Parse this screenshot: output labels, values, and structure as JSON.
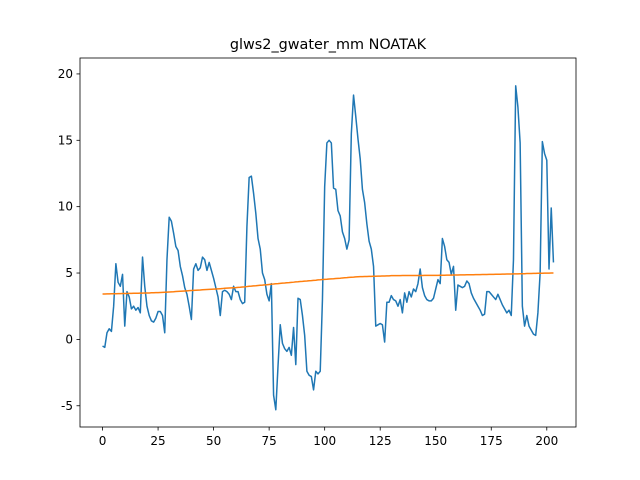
{
  "chart_data": {
    "type": "line",
    "title": "glws2_gwater_mm NOATAK",
    "x": [
      0,
      1,
      2,
      3,
      4,
      5,
      6,
      7,
      8,
      9,
      10,
      11,
      12,
      13,
      14,
      15,
      16,
      17,
      18,
      19,
      20,
      21,
      22,
      23,
      24,
      25,
      26,
      27,
      28,
      29,
      30,
      31,
      32,
      33,
      34,
      35,
      36,
      37,
      38,
      39,
      40,
      41,
      42,
      43,
      44,
      45,
      46,
      47,
      48,
      49,
      50,
      51,
      52,
      53,
      54,
      55,
      56,
      57,
      58,
      59,
      60,
      61,
      62,
      63,
      64,
      65,
      66,
      67,
      68,
      69,
      70,
      71,
      72,
      73,
      74,
      75,
      76,
      77,
      78,
      79,
      80,
      81,
      82,
      83,
      84,
      85,
      86,
      87,
      88,
      89,
      90,
      91,
      92,
      93,
      94,
      95,
      96,
      97,
      98,
      99,
      100,
      101,
      102,
      103,
      104,
      105,
      106,
      107,
      108,
      109,
      110,
      111,
      112,
      113,
      114,
      115,
      116,
      117,
      118,
      119,
      120,
      121,
      122,
      123,
      124,
      125,
      126,
      127,
      128,
      129,
      130,
      131,
      132,
      133,
      134,
      135,
      136,
      137,
      138,
      139,
      140,
      141,
      142,
      143,
      144,
      145,
      146,
      147,
      148,
      149,
      150,
      151,
      152,
      153,
      154,
      155,
      156,
      157,
      158,
      159,
      160,
      161,
      162,
      163,
      164,
      165,
      166,
      167,
      168,
      169,
      170,
      171,
      172,
      173,
      174,
      175,
      176,
      177,
      178,
      179,
      180,
      181,
      182,
      183,
      184,
      185,
      186,
      187,
      188,
      189,
      190,
      191,
      192,
      193,
      194,
      195,
      196,
      197,
      198,
      199,
      200,
      201,
      202,
      203
    ],
    "series": [
      {
        "color": "#1f77b4",
        "values": [
          -0.5,
          -0.6,
          0.5,
          0.8,
          0.6,
          2.5,
          5.7,
          4.3,
          4.0,
          4.9,
          1.0,
          3.6,
          3.2,
          2.3,
          2.5,
          2.2,
          2.4,
          2.0,
          6.2,
          4.0,
          2.5,
          1.8,
          1.4,
          1.3,
          1.6,
          2.1,
          2.1,
          1.8,
          0.5,
          6.0,
          9.2,
          8.9,
          8.0,
          7.0,
          6.7,
          5.5,
          4.8,
          3.9,
          3.4,
          2.5,
          1.5,
          5.3,
          5.7,
          5.2,
          5.4,
          6.2,
          6.0,
          5.2,
          5.8,
          5.2,
          4.6,
          3.9,
          3.2,
          1.8,
          3.6,
          3.7,
          3.6,
          3.4,
          3.0,
          4.0,
          3.6,
          3.6,
          3.0,
          2.7,
          2.8,
          8.5,
          12.2,
          12.3,
          11.0,
          9.5,
          7.6,
          6.8,
          5.0,
          4.5,
          3.4,
          2.9,
          4.2,
          -4.2,
          -5.3,
          -2.0,
          1.1,
          -0.3,
          -0.7,
          -0.9,
          -0.6,
          -1.2,
          0.9,
          -1.9,
          3.1,
          3.0,
          1.8,
          0.3,
          -2.4,
          -2.7,
          -2.8,
          -3.8,
          -2.4,
          -2.6,
          -2.4,
          3.0,
          11.5,
          14.8,
          15.0,
          14.8,
          11.4,
          11.3,
          9.7,
          9.3,
          8.1,
          7.6,
          6.8,
          7.5,
          15.5,
          18.4,
          16.8,
          15.1,
          13.6,
          11.3,
          10.3,
          8.7,
          7.4,
          6.8,
          5.5,
          1.0,
          1.1,
          1.2,
          1.1,
          -0.2,
          2.8,
          2.8,
          3.3,
          3.0,
          2.9,
          2.5,
          3.0,
          2.0,
          3.5,
          2.8,
          3.6,
          3.2,
          3.8,
          3.6,
          4.2,
          5.3,
          3.9,
          3.3,
          3.0,
          2.9,
          2.9,
          3.1,
          3.8,
          4.5,
          4.2,
          7.6,
          7.0,
          6.0,
          5.8,
          4.9,
          5.5,
          2.2,
          4.1,
          4.0,
          3.9,
          4.0,
          4.4,
          4.2,
          3.5,
          3.1,
          2.8,
          2.5,
          2.2,
          1.8,
          1.9,
          3.6,
          3.6,
          3.4,
          3.2,
          3.0,
          3.4,
          3.0,
          2.6,
          2.3,
          2.0,
          2.2,
          1.8,
          6.0,
          19.1,
          17.5,
          14.8,
          2.5,
          1.0,
          1.8,
          1.0,
          0.7,
          0.4,
          0.3,
          2.0,
          5.0,
          14.9,
          14.0,
          13.5,
          5.3,
          9.9,
          5.8
        ]
      },
      {
        "color": "#ff7f0e",
        "values": [
          3.42,
          3.42,
          3.43,
          3.43,
          3.44,
          3.44,
          3.44,
          3.45,
          3.45,
          3.46,
          3.46,
          3.46,
          3.47,
          3.47,
          3.48,
          3.48,
          3.48,
          3.49,
          3.49,
          3.5,
          3.5,
          3.5,
          3.51,
          3.51,
          3.52,
          3.52,
          3.53,
          3.54,
          3.55,
          3.56,
          3.57,
          3.58,
          3.59,
          3.61,
          3.62,
          3.63,
          3.64,
          3.65,
          3.66,
          3.67,
          3.68,
          3.69,
          3.7,
          3.71,
          3.72,
          3.74,
          3.75,
          3.76,
          3.77,
          3.78,
          3.79,
          3.8,
          3.81,
          3.82,
          3.83,
          3.85,
          3.86,
          3.87,
          3.88,
          3.89,
          3.9,
          3.92,
          3.93,
          3.95,
          3.96,
          3.98,
          4.0,
          4.01,
          4.03,
          4.04,
          4.06,
          4.08,
          4.09,
          4.11,
          4.12,
          4.14,
          4.16,
          4.17,
          4.19,
          4.2,
          4.22,
          4.24,
          4.25,
          4.27,
          4.28,
          4.3,
          4.31,
          4.33,
          4.34,
          4.36,
          4.37,
          4.39,
          4.4,
          4.42,
          4.43,
          4.45,
          4.46,
          4.48,
          4.49,
          4.51,
          4.52,
          4.53,
          4.55,
          4.56,
          4.57,
          4.59,
          4.6,
          4.61,
          4.63,
          4.64,
          4.65,
          4.67,
          4.68,
          4.69,
          4.71,
          4.72,
          4.73,
          4.73,
          4.74,
          4.74,
          4.75,
          4.75,
          4.76,
          4.76,
          4.77,
          4.77,
          4.78,
          4.78,
          4.79,
          4.79,
          4.8,
          4.8,
          4.8,
          4.8,
          4.8,
          4.81,
          4.81,
          4.81,
          4.81,
          4.81,
          4.81,
          4.81,
          4.81,
          4.81,
          4.81,
          4.82,
          4.82,
          4.82,
          4.82,
          4.82,
          4.82,
          4.82,
          4.83,
          4.83,
          4.83,
          4.84,
          4.84,
          4.84,
          4.85,
          4.85,
          4.85,
          4.86,
          4.86,
          4.86,
          4.87,
          4.87,
          4.87,
          4.87,
          4.88,
          4.88,
          4.88,
          4.89,
          4.89,
          4.89,
          4.9,
          4.9,
          4.9,
          4.91,
          4.91,
          4.91,
          4.92,
          4.92,
          4.93,
          4.93,
          4.93,
          4.94,
          4.94,
          4.94,
          4.95,
          4.95,
          4.95,
          4.96,
          4.96,
          4.96,
          4.97,
          4.97,
          4.98,
          4.98,
          4.98,
          4.99,
          4.99,
          4.99,
          5.0,
          5.0
        ]
      }
    ],
    "xlim": [
      -10.15,
      213.15
    ],
    "ylim": [
      -6.6,
      21.2
    ],
    "xticks": [
      0,
      25,
      50,
      75,
      100,
      125,
      150,
      175,
      200
    ],
    "yticks": [
      -5,
      0,
      5,
      10,
      15,
      20
    ],
    "grid": false
  }
}
